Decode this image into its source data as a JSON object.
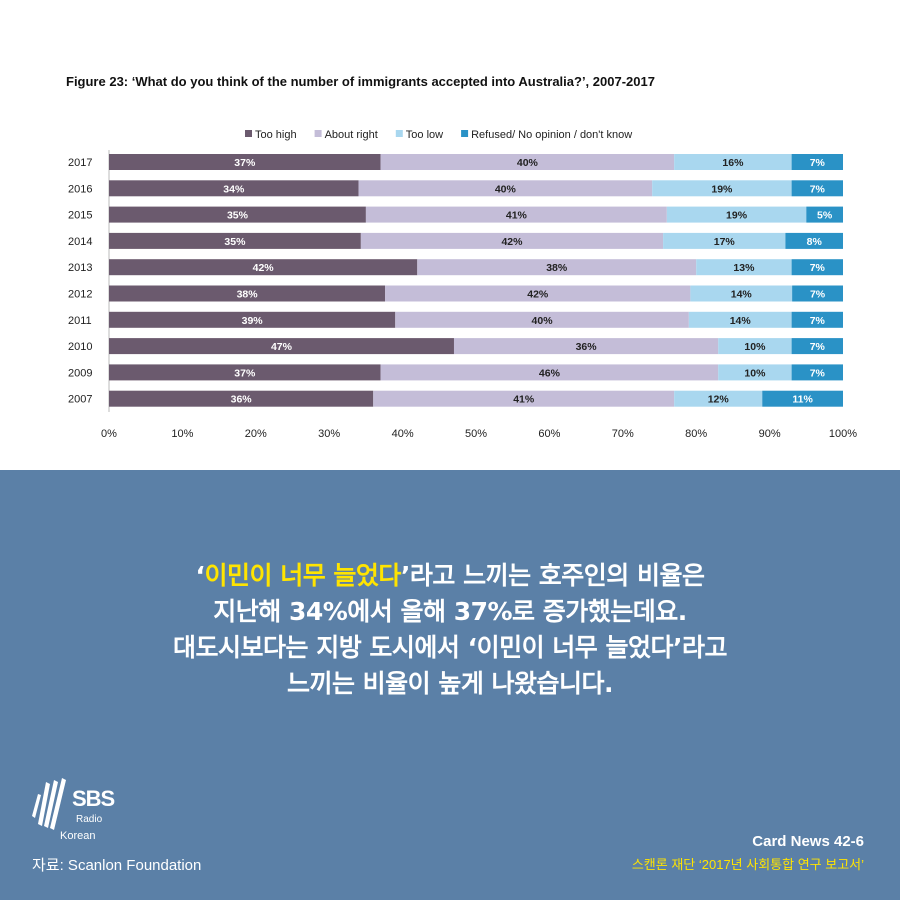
{
  "chart_data": {
    "type": "bar",
    "orientation": "horizontal",
    "stacked": true,
    "title": "Figure 23: ‘What do you think of the number of immigrants accepted into Australia?’, 2007-2017",
    "categories": [
      "2017",
      "2016",
      "2015",
      "2014",
      "2013",
      "2012",
      "2011",
      "2010",
      "2009",
      "2007"
    ],
    "series": [
      {
        "name": "Too high",
        "color": "#6b5a6e",
        "values": [
          37,
          34,
          35,
          35,
          42,
          38,
          39,
          47,
          37,
          36
        ]
      },
      {
        "name": "About right",
        "color": "#c4bdd8",
        "values": [
          40,
          40,
          41,
          42,
          38,
          42,
          40,
          36,
          46,
          41
        ]
      },
      {
        "name": "Too low",
        "color": "#a9d7ef",
        "values": [
          16,
          19,
          19,
          17,
          13,
          14,
          14,
          10,
          10,
          12
        ]
      },
      {
        "name": "Refused/ No opinion / don't know",
        "color": "#2a92c6",
        "values": [
          7,
          7,
          5,
          8,
          7,
          7,
          7,
          7,
          7,
          11
        ]
      }
    ],
    "xlim": [
      0,
      100
    ],
    "xticks": [
      "0%",
      "10%",
      "20%",
      "30%",
      "40%",
      "50%",
      "60%",
      "70%",
      "80%",
      "90%",
      "100%"
    ],
    "legend": "top",
    "grid": false
  },
  "message": {
    "line1_quote_open": "‘",
    "line1_highlight": "이민이 너무 늘었다",
    "line1_rest": "’라고 느끼는 호주인의 비율은",
    "line2": "지난해 34%에서 올해 37%로 증가했는데요.",
    "line3": "대도시보다는 지방 도시에서 ‘이민이 너무 늘었다’라고",
    "line4": "느끼는 비율이 높게 나왔습니다."
  },
  "footer": {
    "logo_text": "SBS",
    "logo_sub": "Radio",
    "logo_lang": "Korean",
    "source": "자료: Scanlon Foundation",
    "card": "Card News 42-6",
    "report": "스캔론 재단 ‘2017년 사회통합 연구 보고서’"
  }
}
